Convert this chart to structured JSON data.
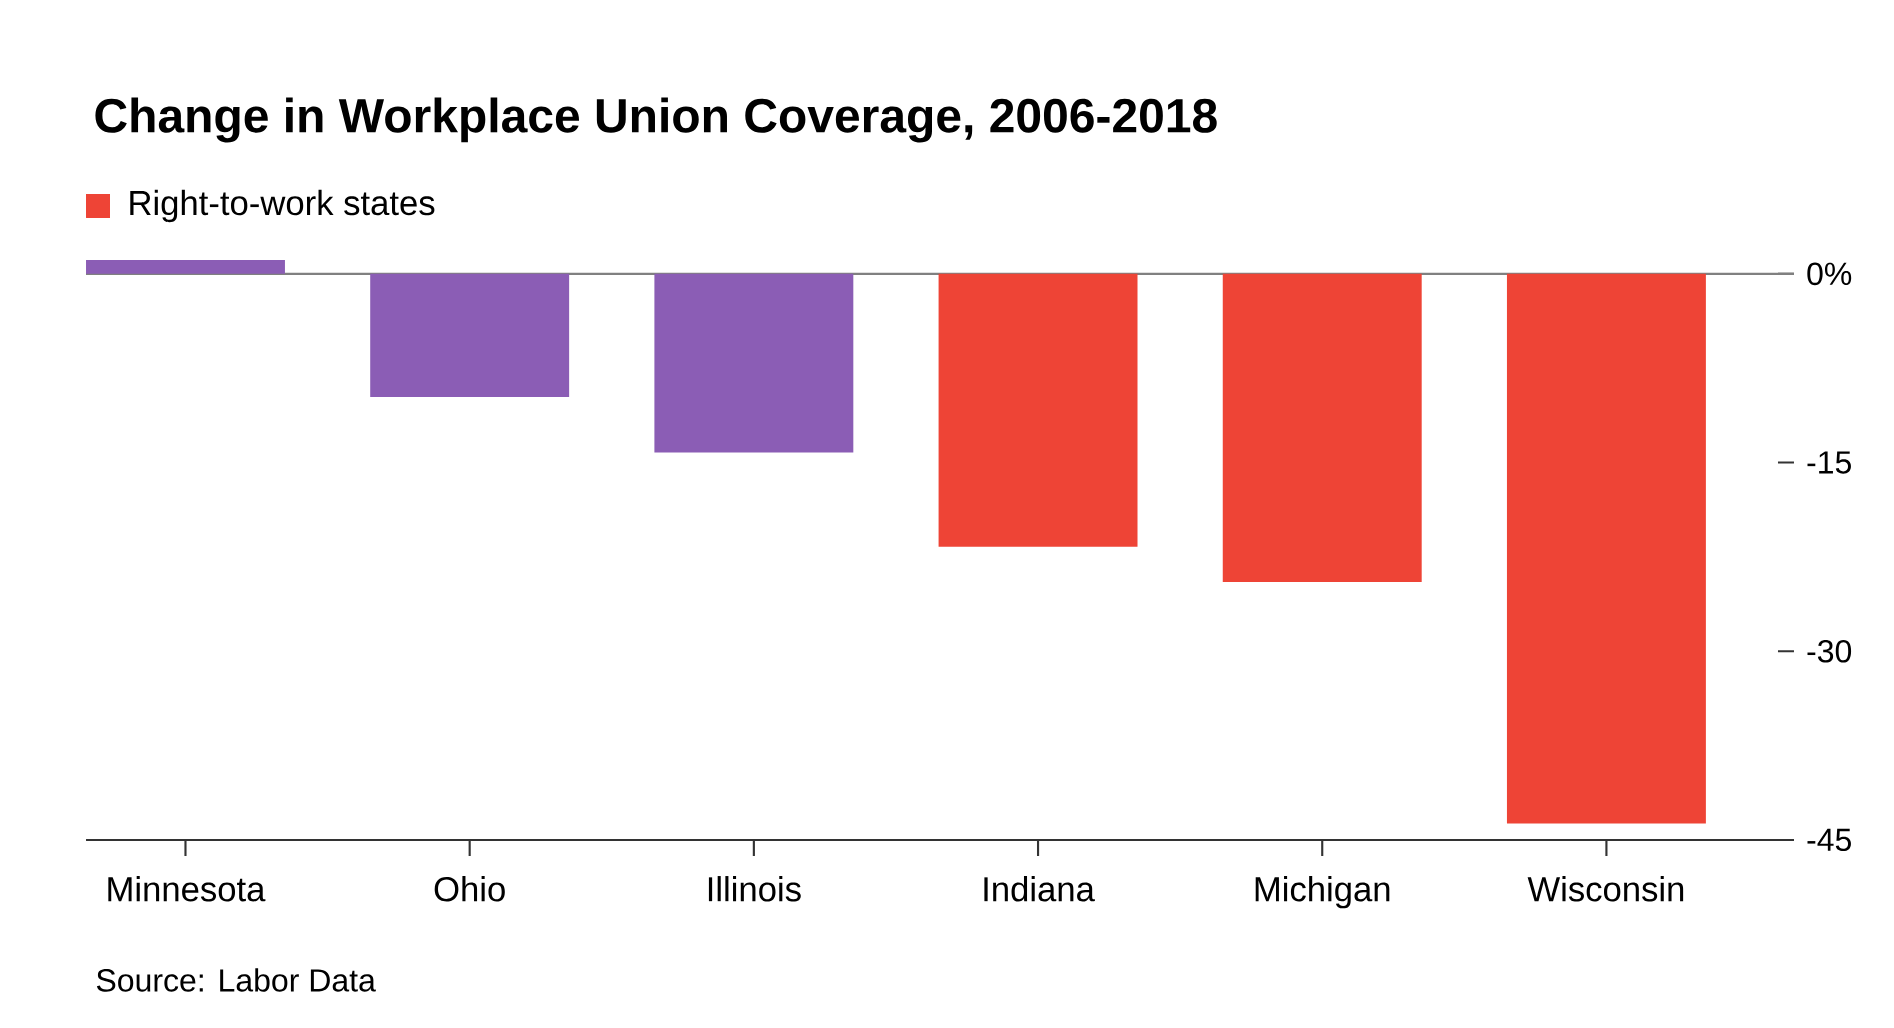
{
  "chart_data": {
    "type": "bar",
    "title": "Change in Workplace Union Coverage, 2006-2018",
    "categories": [
      "Minnesota",
      "Ohio",
      "Illinois",
      "Indiana",
      "Michigan",
      "Wisconsin"
    ],
    "series": [
      {
        "color": "#8b5db5",
        "values": [
          1.1,
          -9.8,
          -14.2,
          null,
          null,
          null
        ]
      },
      {
        "name": "Right-to-work states",
        "color": "#ee4436",
        "values": [
          null,
          null,
          null,
          -21.7,
          -24.5,
          -43.7
        ]
      }
    ],
    "ylim": [
      -45,
      1.1
    ],
    "yticks": [
      {
        "value": 0,
        "label": "0%"
      },
      -15,
      -30,
      -45
    ],
    "legend": "top left",
    "grid": false,
    "ref_lines": [
      {
        "axis": "y",
        "value": 0,
        "color": "#808080"
      }
    ],
    "annotations": [
      "Source: Labor Data"
    ]
  }
}
